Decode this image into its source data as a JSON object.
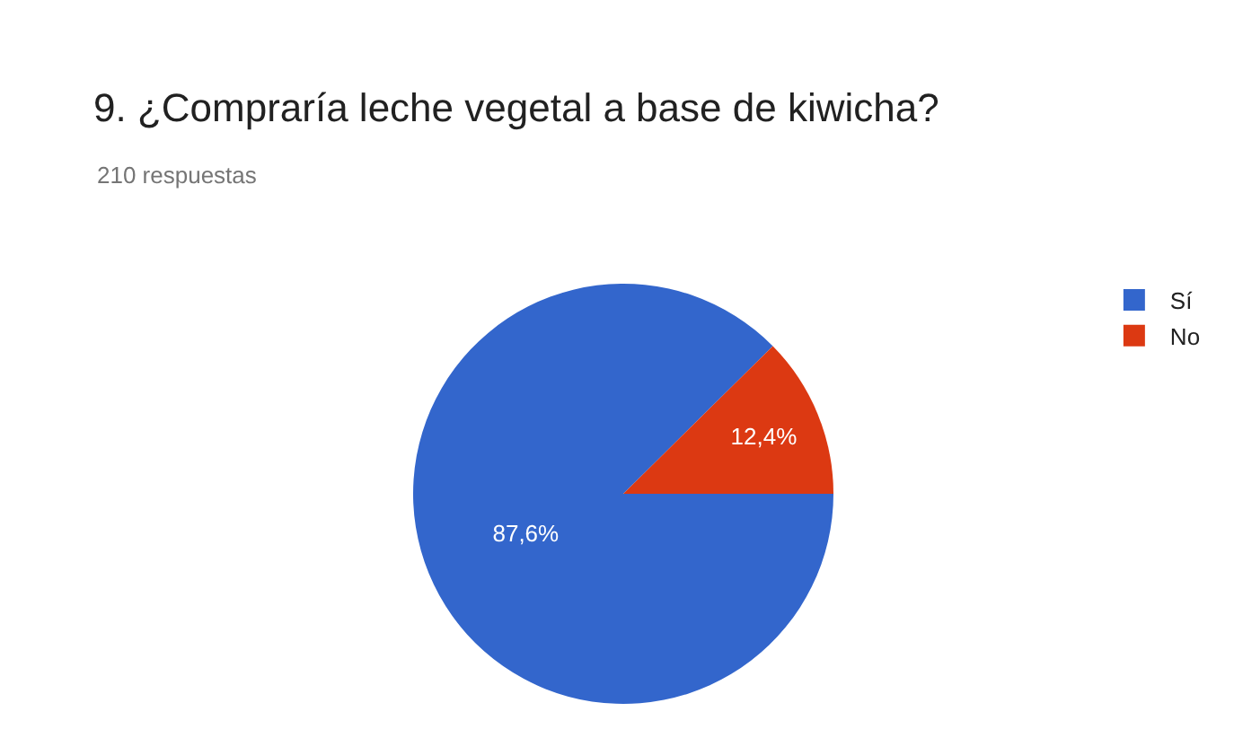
{
  "chart_data": {
    "type": "pie",
    "title": "9. ¿Compraría leche vegetal a base de kiwicha?",
    "subtitle": "210 respuestas",
    "categories": [
      "Sí",
      "No"
    ],
    "values": [
      87.6,
      12.4
    ],
    "colors": [
      "#3366cc",
      "#dc3912"
    ],
    "value_labels": [
      "87,6%",
      "12,4%"
    ],
    "legend": "top right"
  }
}
